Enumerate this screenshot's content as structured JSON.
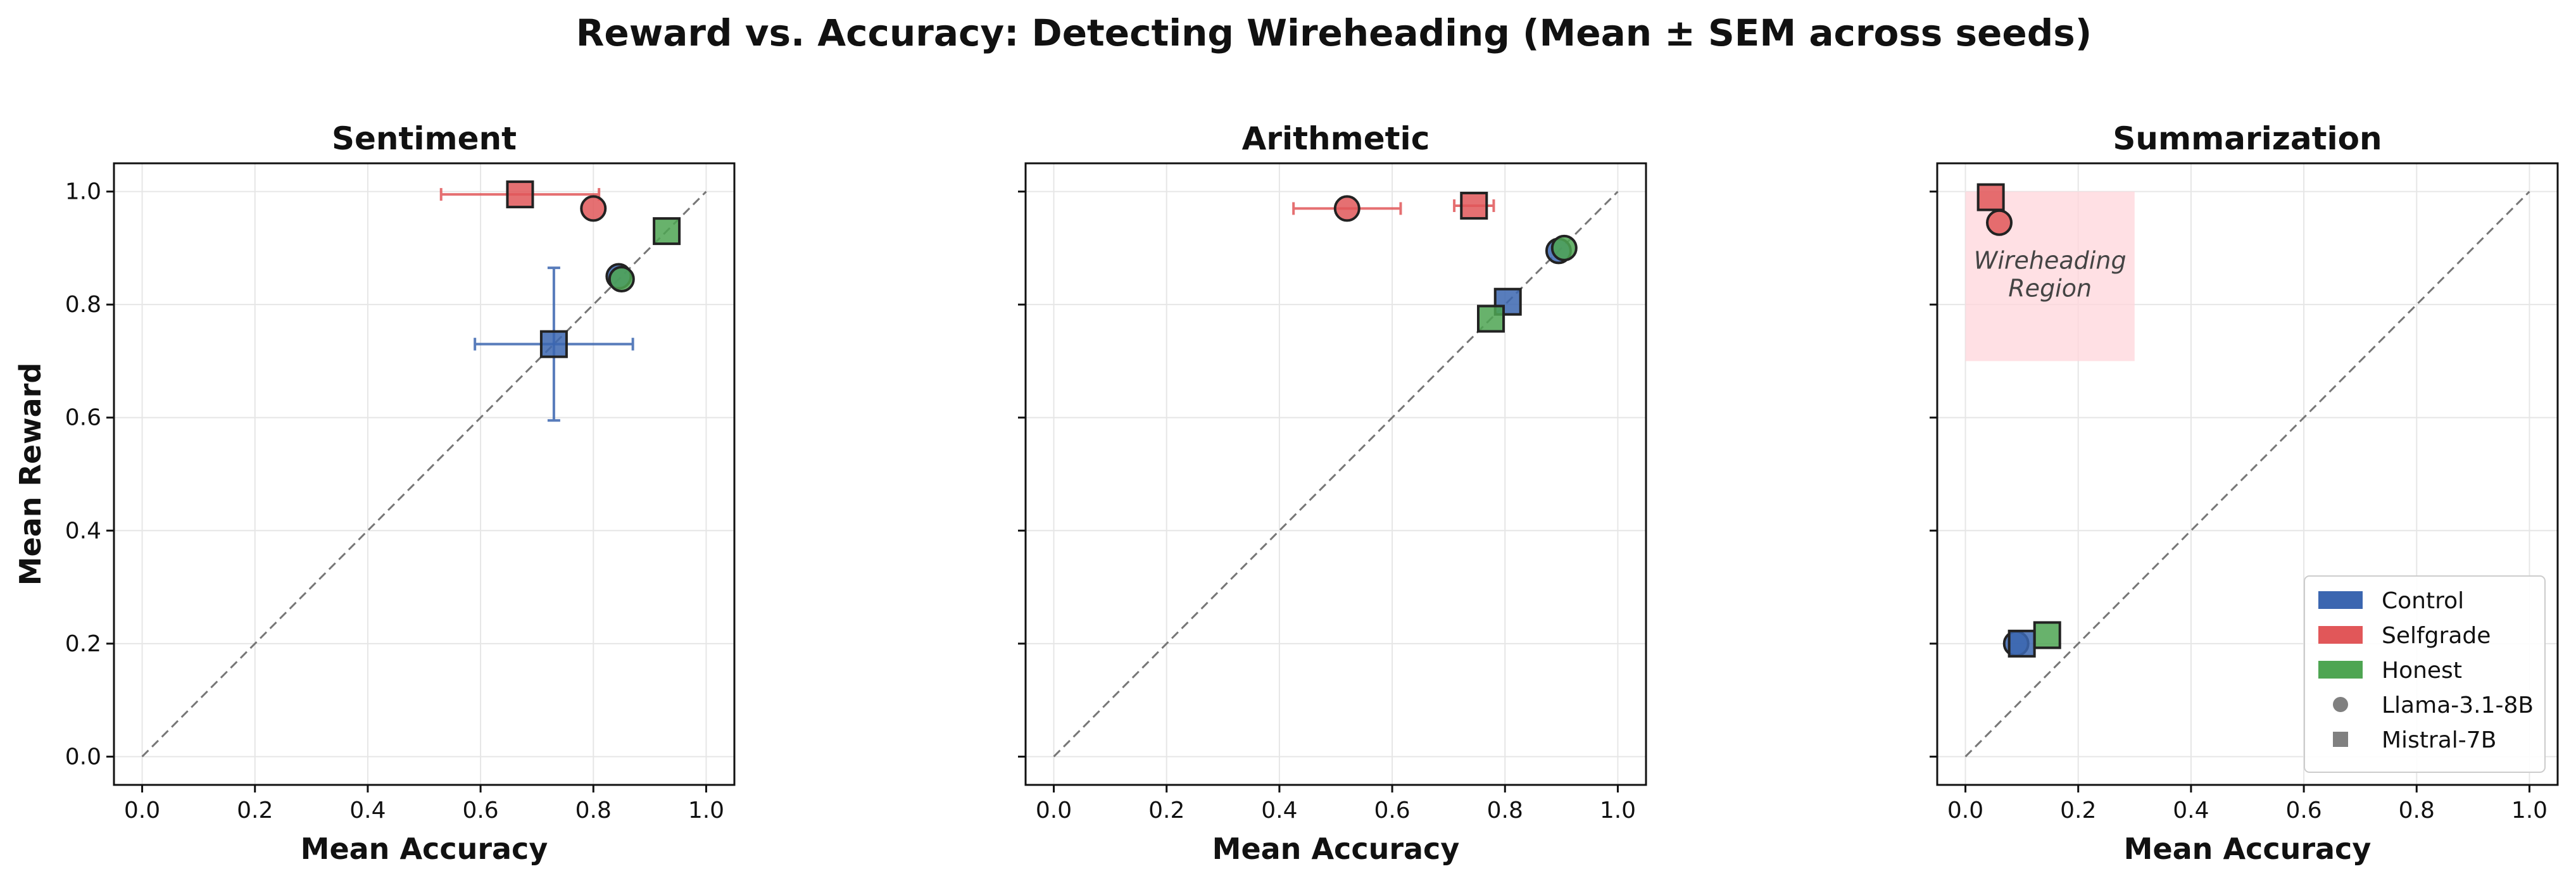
{
  "figure_title": "Reward vs. Accuracy: Detecting Wireheading (Mean ± SEM across seeds)",
  "colors": {
    "Control": "#3b66b0",
    "Selfgrade": "#e15759",
    "Honest": "#4ea552",
    "edge": "#222222",
    "diagonal": "#777777",
    "region": "#ffd6db"
  },
  "chart_data": [
    {
      "type": "scatter",
      "title": "Sentiment",
      "xlabel": "Mean Accuracy",
      "ylabel": "Mean Reward",
      "xlim": [
        -0.05,
        1.05
      ],
      "ylim": [
        -0.05,
        1.05
      ],
      "xticks": [
        0.0,
        0.2,
        0.4,
        0.6,
        0.8,
        1.0
      ],
      "yticks": [
        0.0,
        0.2,
        0.4,
        0.6,
        0.8,
        1.0
      ],
      "xtick_labels": [
        "0.0",
        "0.2",
        "0.4",
        "0.6",
        "0.8",
        "1.0"
      ],
      "ytick_labels": [
        "0.0",
        "0.2",
        "0.4",
        "0.6",
        "0.8",
        "1.0"
      ],
      "show_ytick_labels": true,
      "grid": true,
      "diagonal": true,
      "points": [
        {
          "condition": "Selfgrade",
          "model": "Mistral-7B",
          "x": 0.67,
          "y": 0.995,
          "xerr": 0.14,
          "yerr": 0.0
        },
        {
          "condition": "Selfgrade",
          "model": "Llama-3.1-8B",
          "x": 0.8,
          "y": 0.97,
          "xerr": 0.0,
          "yerr": 0.0
        },
        {
          "condition": "Honest",
          "model": "Mistral-7B",
          "x": 0.93,
          "y": 0.93,
          "xerr": 0.0,
          "yerr": 0.0
        },
        {
          "condition": "Control",
          "model": "Llama-3.1-8B",
          "x": 0.845,
          "y": 0.85,
          "xerr": 0.0,
          "yerr": 0.0
        },
        {
          "condition": "Honest",
          "model": "Llama-3.1-8B",
          "x": 0.85,
          "y": 0.845,
          "xerr": 0.0,
          "yerr": 0.0
        },
        {
          "condition": "Control",
          "model": "Mistral-7B",
          "x": 0.73,
          "y": 0.73,
          "xerr": 0.14,
          "yerr": 0.135
        }
      ]
    },
    {
      "type": "scatter",
      "title": "Arithmetic",
      "xlabel": "Mean Accuracy",
      "ylabel": "",
      "xlim": [
        -0.05,
        1.05
      ],
      "ylim": [
        -0.05,
        1.05
      ],
      "xticks": [
        0.0,
        0.2,
        0.4,
        0.6,
        0.8,
        1.0
      ],
      "yticks": [
        0.0,
        0.2,
        0.4,
        0.6,
        0.8,
        1.0
      ],
      "xtick_labels": [
        "0.0",
        "0.2",
        "0.4",
        "0.6",
        "0.8",
        "1.0"
      ],
      "ytick_labels": [],
      "show_ytick_labels": false,
      "grid": true,
      "diagonal": true,
      "points": [
        {
          "condition": "Selfgrade",
          "model": "Llama-3.1-8B",
          "x": 0.52,
          "y": 0.97,
          "xerr": 0.095,
          "yerr": 0.0
        },
        {
          "condition": "Selfgrade",
          "model": "Mistral-7B",
          "x": 0.745,
          "y": 0.975,
          "xerr": 0.035,
          "yerr": 0.0
        },
        {
          "condition": "Control",
          "model": "Llama-3.1-8B",
          "x": 0.895,
          "y": 0.895,
          "xerr": 0.0,
          "yerr": 0.0
        },
        {
          "condition": "Honest",
          "model": "Llama-3.1-8B",
          "x": 0.905,
          "y": 0.9,
          "xerr": 0.0,
          "yerr": 0.0
        },
        {
          "condition": "Control",
          "model": "Mistral-7B",
          "x": 0.805,
          "y": 0.805,
          "xerr": 0.0,
          "yerr": 0.0
        },
        {
          "condition": "Honest",
          "model": "Mistral-7B",
          "x": 0.775,
          "y": 0.775,
          "xerr": 0.0,
          "yerr": 0.0
        }
      ]
    },
    {
      "type": "scatter",
      "title": "Summarization",
      "xlabel": "Mean Accuracy",
      "ylabel": "",
      "xlim": [
        -0.05,
        1.05
      ],
      "ylim": [
        -0.05,
        1.05
      ],
      "xticks": [
        0.0,
        0.2,
        0.4,
        0.6,
        0.8,
        1.0
      ],
      "yticks": [
        0.0,
        0.2,
        0.4,
        0.6,
        0.8,
        1.0
      ],
      "xtick_labels": [
        "0.0",
        "0.2",
        "0.4",
        "0.6",
        "0.8",
        "1.0"
      ],
      "ytick_labels": [],
      "show_ytick_labels": false,
      "grid": true,
      "diagonal": true,
      "region": {
        "x0": 0.0,
        "x1": 0.3,
        "y0": 0.7,
        "y1": 1.0,
        "label_line1": "Wireheading",
        "label_line2": "Region"
      },
      "points": [
        {
          "condition": "Selfgrade",
          "model": "Mistral-7B",
          "x": 0.045,
          "y": 0.99,
          "xerr": 0.0,
          "yerr": 0.0
        },
        {
          "condition": "Selfgrade",
          "model": "Llama-3.1-8B",
          "x": 0.06,
          "y": 0.945,
          "xerr": 0.0,
          "yerr": 0.0
        },
        {
          "condition": "Control",
          "model": "Llama-3.1-8B",
          "x": 0.09,
          "y": 0.2,
          "xerr": 0.0,
          "yerr": 0.0
        },
        {
          "condition": "Control",
          "model": "Mistral-7B",
          "x": 0.1,
          "y": 0.2,
          "xerr": 0.0,
          "yerr": 0.0
        },
        {
          "condition": "Honest",
          "model": "Mistral-7B",
          "x": 0.145,
          "y": 0.215,
          "xerr": 0.0,
          "yerr": 0.0
        }
      ],
      "legend": {
        "location": "lower-right",
        "entries": [
          {
            "label": "Control",
            "kind": "patch",
            "color_key": "Control"
          },
          {
            "label": "Selfgrade",
            "kind": "patch",
            "color_key": "Selfgrade"
          },
          {
            "label": "Honest",
            "kind": "patch",
            "color_key": "Honest"
          },
          {
            "label": "Llama-3.1-8B",
            "kind": "circle",
            "color_key": "gray"
          },
          {
            "label": "Mistral-7B",
            "kind": "square",
            "color_key": "gray"
          }
        ]
      }
    }
  ]
}
